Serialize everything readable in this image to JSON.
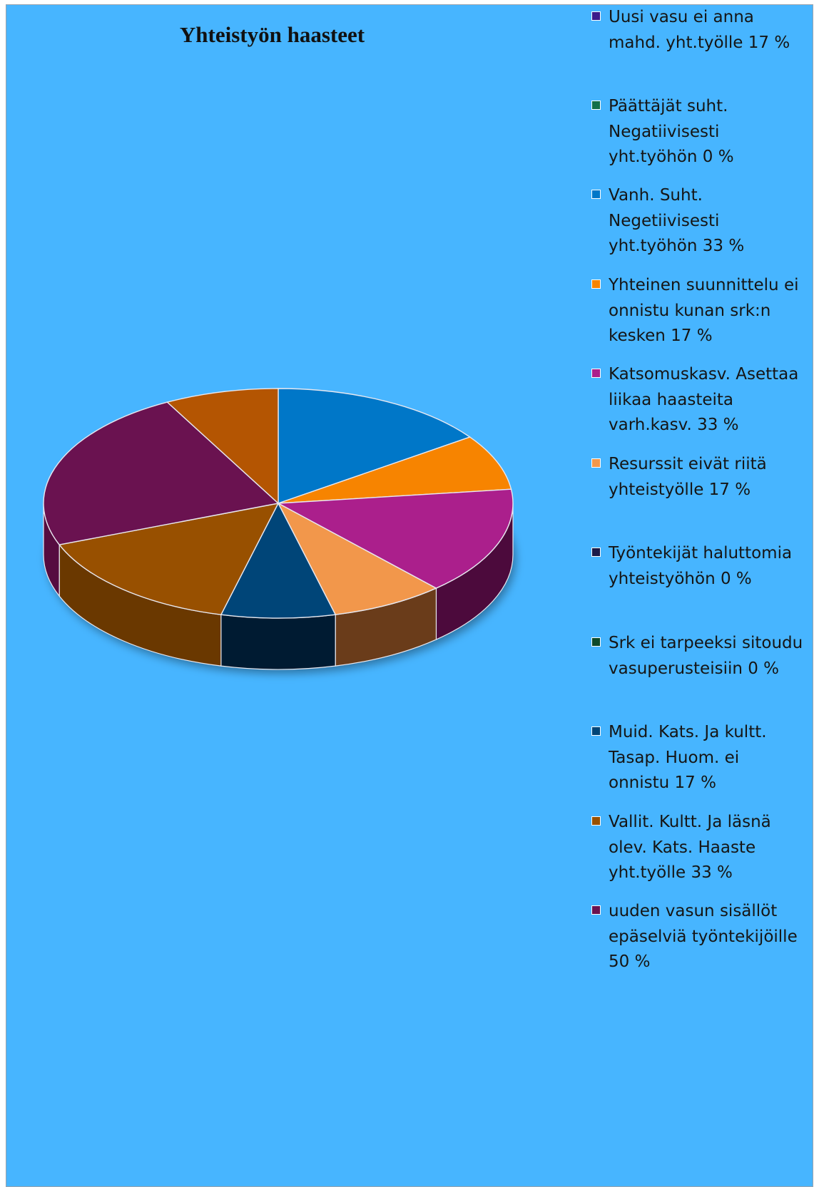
{
  "chart_data": {
    "type": "pie",
    "title": "Yhteistyön haasteet",
    "three_d": true,
    "legend_position": "right",
    "series": [
      {
        "name": "Uusi vasu ei anna mahd. yht.työlle 17 %",
        "value": 17,
        "color": "#3b1c8c"
      },
      {
        "name": "Päättäjät suht. Negatiivisesti yht.työhön 0 %",
        "value": 0,
        "color": "#12704a"
      },
      {
        "name": "Vanh. Suht. Negetiivisesti yht.työhön 33 %",
        "value": 33,
        "color": "#0077c8"
      },
      {
        "name": "Yhteinen suunnittelu ei onnistu kunan srk:n kesken 17 %",
        "value": 17,
        "color": "#f78400"
      },
      {
        "name": "Katsomuskasv. Asettaa liikaa haasteita varh.kasv. 33 %",
        "value": 33,
        "color": "#ab1f8c"
      },
      {
        "name": "Resurssit eivät riitä yhteistyölle 17 %",
        "value": 17,
        "color": "#f2974b"
      },
      {
        "name": "Työntekijät haluttomia yhteistyöhön 0 %",
        "value": 0,
        "color": "#1b1b4a"
      },
      {
        "name": "Srk ei tarpeeksi sitoudu vasuperusteisiin 0 %",
        "value": 0,
        "color": "#0d4a2c"
      },
      {
        "name": "Muid. Kats. Ja kultt. Tasap. Huom. ei onnistu 17 %",
        "value": 17,
        "color": "#004578"
      },
      {
        "name": "Vallit. Kultt. Ja läsnä olev. Kats. Haaste yht.työlle 33 %",
        "value": 33,
        "color": "#985000"
      },
      {
        "name": "uuden vasun sisällöt epäselviä työntekijöille 50 %",
        "value": 50,
        "color": "#6a1250"
      }
    ],
    "legend_order": [
      "Uusi vasu ei anna mahd. yht.työlle 17 %",
      "Päättäjät suht. Negatiivisesti yht.työhön 0 %",
      "Vanh. Suht. Negetiivisesti yht.työhön 33 %",
      "Yhteinen suunnittelu ei onnistu kunan srk:n kesken 17 %",
      "Katsomuskasv. Asettaa liikaa haasteita varh.kasv. 33 %",
      "Resurssit eivät riitä yhteistyölle 17 %",
      "Työntekijät haluttomia yhteistyöhön 0 %",
      "Srk ei tarpeeksi sitoudu vasuperusteisiin 0 %",
      "Muid. Kats. Ja kultt. Tasap. Huom. ei onnistu 17 %",
      "Vallit. Kultt. Ja läsnä olev. Kats. Haaste yht.työlle 33 %",
      "uuden vasun sisällöt epäselviä työntekijöille 50 %"
    ]
  },
  "legend_items": [
    {
      "lines": [
        "Uusi vasu ei anna",
        "mahd. yht.työlle 17 %"
      ],
      "color": "#3b1c8c"
    },
    {
      "lines": [
        "Päättäjät suht.",
        "Negatiivisesti",
        "yht.työhön 0 %"
      ],
      "color": "#12704a"
    },
    {
      "lines": [
        "Vanh. Suht.",
        "Negetiivisesti",
        "yht.työhön 33 %"
      ],
      "color": "#0077c8"
    },
    {
      "lines": [
        "Yhteinen suunnittelu ei",
        "onnistu kunan srk:n",
        "kesken 17 %"
      ],
      "color": "#f78400"
    },
    {
      "lines": [
        "Katsomuskasv. Asettaa",
        "liikaa haasteita",
        "varh.kasv. 33 %"
      ],
      "color": "#ab1f8c"
    },
    {
      "lines": [
        "Resurssit eivät riitä",
        "yhteistyölle 17 %"
      ],
      "color": "#f2974b"
    },
    {
      "lines": [
        "Työntekijät haluttomia",
        "yhteistyöhön 0 %"
      ],
      "color": "#1b1b4a"
    },
    {
      "lines": [
        "Srk ei tarpeeksi sitoudu",
        "vasuperusteisiin 0 %"
      ],
      "color": "#0d4a2c"
    },
    {
      "lines": [
        "Muid. Kats. Ja kultt.",
        "Tasap. Huom. ei",
        "onnistu 17 %"
      ],
      "color": "#004578"
    },
    {
      "lines": [
        "Vallit. Kultt. Ja läsnä",
        "olev. Kats. Haaste",
        "yht.työlle 33 %"
      ],
      "color": "#985000"
    },
    {
      "lines": [
        "uuden vasun sisällöt",
        "epäselviä työntekijöille",
        "50 %"
      ],
      "color": "#6a1250"
    }
  ],
  "pie_order": [
    "Vanh. Suht. Negetiivisesti yht.työhön 33 %",
    "Yhteinen suunnittelu ei onnistu kunan srk:n kesken 17 %",
    "Katsomuskasv. Asettaa liikaa haasteita varh.kasv. 33 %",
    "Resurssit eivät riitä yhteistyölle 17 %",
    "Muid. Kats. Ja kultt. Tasap. Huom. ei onnistu 17 %",
    "Vallit. Kultt. Ja läsnä olev. Kats. Haaste yht.työlle 33 %",
    "uuden vasun sisällöt epäselviä työntekijöille 50 %",
    "Uusi vasu ei anna mahd. yht.työlle 17 %"
  ],
  "pie_side_colors": {
    "Katsomuskasv. Asettaa liikaa haasteita varh.kasv. 33 %": "#4c0a3c",
    "Resurssit eivät riitä yhteistyölle 17 %": "#6a3c1a",
    "Muid. Kats. Ja kultt. Tasap. Huom. ei onnistu 17 %": "#001b32",
    "Vallit. Kultt. Ja läsnä olev. Kats. Haaste yht.työlle 33 %": "#6a3800",
    "uuden vasun sisällöt epäselviä työntekijöille 50 %": "#560c40"
  },
  "pie_top_overrides": {
    "Uusi vasu ei anna mahd. yht.työlle 17 %": "#b45502"
  }
}
